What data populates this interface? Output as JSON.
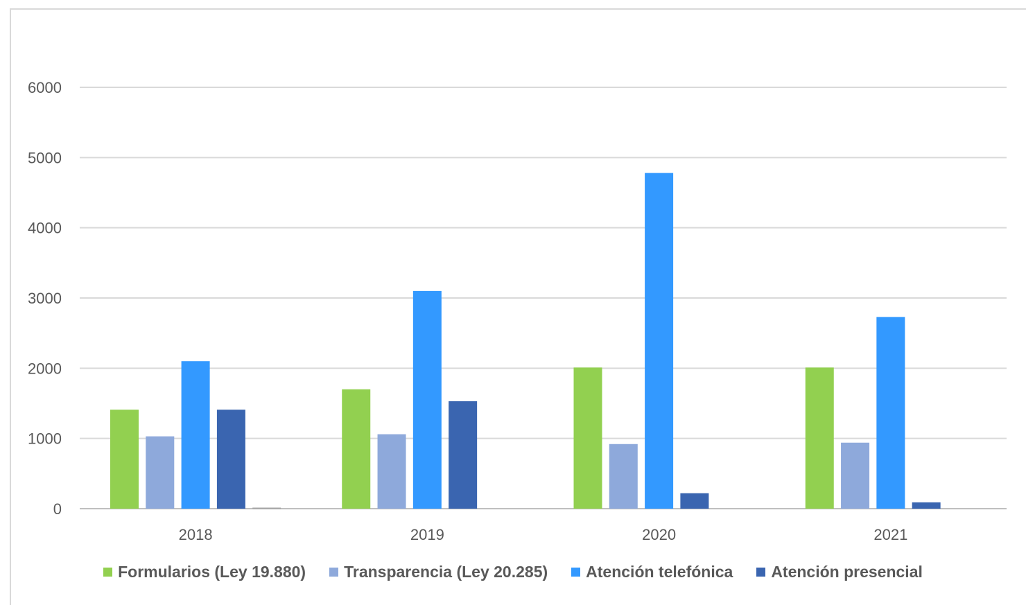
{
  "chart_data": {
    "type": "bar",
    "title": "",
    "xlabel": "",
    "ylabel": "",
    "categories": [
      "2018",
      "2019",
      "2020",
      "2021"
    ],
    "ylim": [
      0,
      6000
    ],
    "yticks": [
      "0",
      "1000",
      "2000",
      "3000",
      "4000",
      "5000",
      "6000"
    ],
    "grid": true,
    "legend_position": "bottom",
    "series": [
      {
        "name": "Formularios (Ley 19.880)",
        "color": "#92d050",
        "values": [
          1410,
          1700,
          2010,
          2010
        ]
      },
      {
        "name": "Transparencia (Ley 20.285)",
        "color": "#8ea9db",
        "values": [
          1030,
          1060,
          920,
          940
        ]
      },
      {
        "name": "Atención telefónica",
        "color": "#3399ff",
        "values": [
          2100,
          3100,
          4780,
          2730
        ]
      },
      {
        "name": "Atención presencial",
        "color": "#3a65b0",
        "values": [
          1410,
          1530,
          220,
          90
        ]
      }
    ],
    "extra_small_bar": {
      "category": "2018",
      "value": 15,
      "color": "#a6a6a6"
    }
  }
}
